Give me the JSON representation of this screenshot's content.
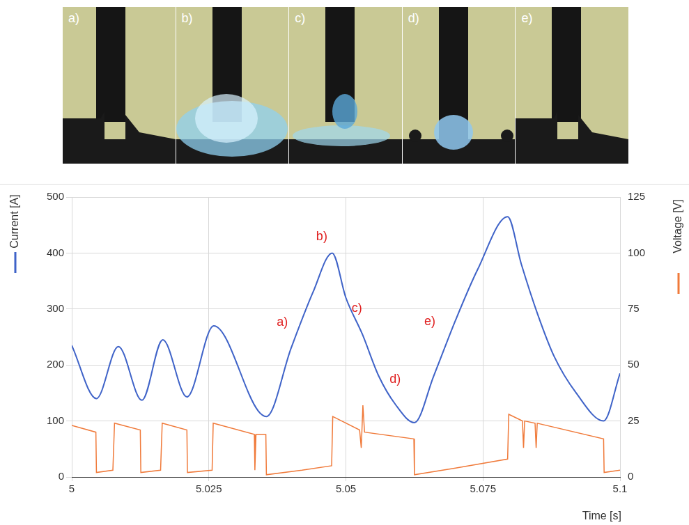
{
  "panels": [
    "a)",
    "b)",
    "c)",
    "d)",
    "e)"
  ],
  "chart_data": {
    "type": "line",
    "x_label": "Time [s]",
    "xlim": [
      5,
      5.1
    ],
    "xticks": [
      5,
      5.025,
      5.05,
      5.075,
      5.1
    ],
    "ylim": [
      0,
      500
    ],
    "yticks": [
      0,
      100,
      200,
      300,
      400,
      500
    ],
    "y2lim": [
      0,
      125
    ],
    "y2ticks": [
      0,
      25,
      50,
      75,
      100,
      125
    ],
    "grid": true,
    "series": [
      {
        "name": "Current [A]",
        "color": "#3f63c8",
        "axis": "y",
        "x": [
          5.0,
          5.0045,
          5.0085,
          5.0128,
          5.0166,
          5.021,
          5.0259,
          5.034,
          5.0355,
          5.04,
          5.044,
          5.0475,
          5.05,
          5.053,
          5.056,
          5.059,
          5.0625,
          5.066,
          5.07,
          5.074,
          5.0795,
          5.082,
          5.085,
          5.088,
          5.092,
          5.097,
          5.1
        ],
        "values": [
          235,
          140,
          233,
          137,
          245,
          143,
          270,
          118,
          108,
          230,
          330,
          400,
          320,
          255,
          180,
          130,
          97,
          180,
          280,
          370,
          465,
          380,
          290,
          215,
          150,
          100,
          185
        ]
      },
      {
        "name": "Voltage [V]",
        "color": "#f07a3a",
        "axis": "y2",
        "x": [
          5.0,
          5.0044,
          5.0045,
          5.0075,
          5.0078,
          5.0125,
          5.0126,
          5.0162,
          5.0165,
          5.021,
          5.0211,
          5.0256,
          5.0258,
          5.0333,
          5.0334,
          5.0336,
          5.0354,
          5.0355,
          5.042,
          5.0474,
          5.0476,
          5.0525,
          5.0528,
          5.0531,
          5.0534,
          5.0624,
          5.0625,
          5.07,
          5.0795,
          5.0797,
          5.0822,
          5.0824,
          5.0826,
          5.0845,
          5.0847,
          5.0849,
          5.097,
          5.0971,
          5.1
        ],
        "values": [
          23,
          20,
          2,
          3,
          24,
          21,
          2,
          3,
          24,
          21,
          2,
          3,
          24,
          19,
          3,
          19,
          19,
          1,
          3,
          5,
          27,
          21,
          13,
          32,
          20,
          17,
          1,
          4,
          8,
          28,
          25,
          13,
          25,
          24,
          13,
          24,
          17,
          2,
          3
        ]
      }
    ],
    "annotations": [
      {
        "text": "a)",
        "x": 5.0384,
        "y": 276
      },
      {
        "text": "b)",
        "x": 5.0456,
        "y": 429
      },
      {
        "text": "c)",
        "x": 5.052,
        "y": 301
      },
      {
        "text": "d)",
        "x": 5.059,
        "y": 174
      },
      {
        "text": "e)",
        "x": 5.0653,
        "y": 277
      }
    ]
  }
}
